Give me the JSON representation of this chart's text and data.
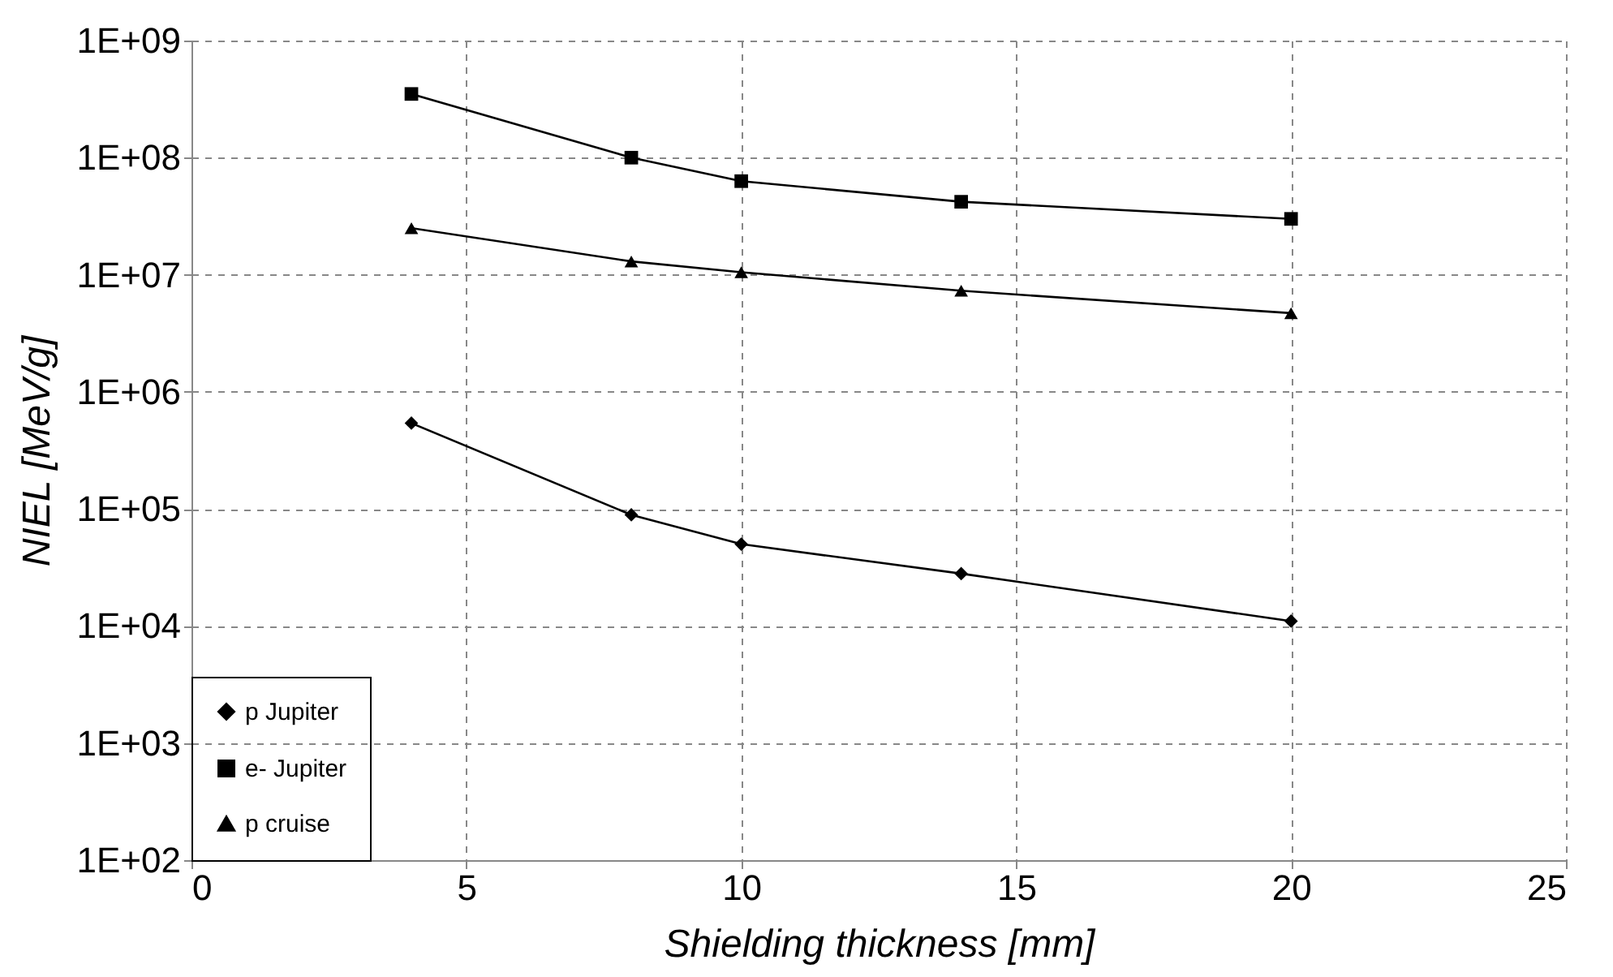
{
  "chart_data": {
    "type": "line",
    "xlabel": "Shielding thickness [mm]",
    "ylabel": "NIEL [MeV/g]",
    "x": [
      4,
      8,
      10,
      14,
      20
    ],
    "series": [
      {
        "name": "p Jupiter",
        "color": "#000000",
        "marker": "diamond",
        "values": [
          540000,
          89000,
          50000,
          28000,
          11000
        ]
      },
      {
        "name": "e- Jupiter",
        "color": "#000000",
        "marker": "square",
        "values": [
          350000000,
          100000000,
          63000000,
          42000000,
          30000000
        ]
      },
      {
        "name": "p cruise",
        "color": "#000000",
        "marker": "triangle",
        "values": [
          25000000,
          13000000,
          10500000,
          7300000,
          4700000
        ]
      }
    ],
    "xlim": [
      0,
      25
    ],
    "xticks": [
      0,
      5,
      10,
      15,
      20,
      25
    ],
    "ylim": [
      100,
      1000000000
    ],
    "log": true,
    "yticks": [
      {
        "value": 100,
        "label": "1E+02"
      },
      {
        "value": 1000,
        "label": "1E+03"
      },
      {
        "value": 10000,
        "label": "1E+04"
      },
      {
        "value": 100000,
        "label": "1E+05"
      },
      {
        "value": 1000000,
        "label": "1E+06"
      },
      {
        "value": 10000000,
        "label": "1E+07"
      },
      {
        "value": 100000000,
        "label": "1E+08"
      },
      {
        "value": 1000000000,
        "label": "1E+09"
      }
    ],
    "grid": true,
    "legend": "bottom left",
    "line_style": "solid"
  }
}
